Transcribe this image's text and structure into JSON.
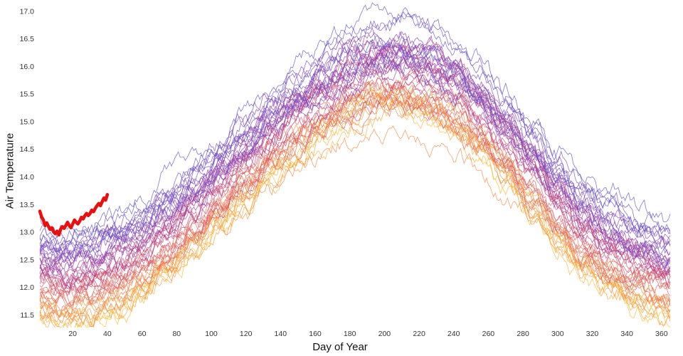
{
  "page": {
    "background": "#ffffff"
  },
  "chart_data": {
    "type": "line",
    "title": "",
    "xlabel": "Day of Year",
    "ylabel": "Air Temperature",
    "xlim": [
      1,
      365
    ],
    "ylim": [
      11.3,
      17.1
    ],
    "x_ticks": [
      20,
      40,
      60,
      80,
      100,
      120,
      140,
      160,
      180,
      200,
      220,
      240,
      260,
      280,
      300,
      320,
      340,
      360
    ],
    "y_ticks": [
      11.5,
      12.0,
      12.5,
      13.0,
      13.5,
      14.0,
      14.5,
      15.0,
      15.5,
      16.0,
      16.5,
      17.0
    ],
    "grid": false,
    "legend": "none",
    "ensemble": {
      "description": "Historical yearly air-temperature traces; older/cooler years orange, newer/warmer years purple",
      "n_series": 50,
      "line_width": 0.8,
      "opacity": 0.8,
      "offset_range": [
        -0.75,
        0.85
      ],
      "noise_amplitude": 0.22,
      "color_stops": [
        "#fdc02f",
        "#f9963f",
        "#ec7156",
        "#d8576b",
        "#b83a8c",
        "#9440ad",
        "#7a4cc5",
        "#6356cd"
      ],
      "seasonal_mean": {
        "days": [
          1,
          15,
          30,
          45,
          60,
          75,
          90,
          105,
          120,
          135,
          150,
          165,
          180,
          195,
          210,
          225,
          240,
          255,
          270,
          285,
          300,
          315,
          330,
          345,
          365
        ],
        "values": [
          12.15,
          12.05,
          12.1,
          12.3,
          12.55,
          12.9,
          13.3,
          13.75,
          14.2,
          14.6,
          15.0,
          15.35,
          15.6,
          15.8,
          15.82,
          15.7,
          15.45,
          15.05,
          14.55,
          14.0,
          13.45,
          12.95,
          12.6,
          12.35,
          12.15
        ]
      }
    },
    "highlight_series": {
      "name": "current-year",
      "color": "#ea0e0e",
      "line_width": 4.5,
      "days": [
        1,
        2,
        3,
        4,
        5,
        6,
        7,
        8,
        9,
        10,
        11,
        12,
        13,
        14,
        15,
        16,
        17,
        18,
        19,
        20,
        21,
        22,
        23,
        24,
        25,
        26,
        27,
        28,
        29,
        30,
        31,
        32,
        33,
        34,
        35,
        36,
        37,
        38,
        39,
        40
      ],
      "values": [
        13.38,
        13.28,
        13.22,
        13.12,
        13.17,
        13.1,
        13.05,
        13.08,
        13.0,
        12.97,
        13.02,
        12.95,
        13.05,
        13.1,
        13.07,
        13.12,
        13.18,
        13.12,
        13.08,
        13.15,
        13.22,
        13.18,
        13.15,
        13.2,
        13.27,
        13.24,
        13.3,
        13.34,
        13.3,
        13.34,
        13.4,
        13.37,
        13.43,
        13.48,
        13.52,
        13.48,
        13.55,
        13.62,
        13.58,
        13.68
      ]
    }
  }
}
